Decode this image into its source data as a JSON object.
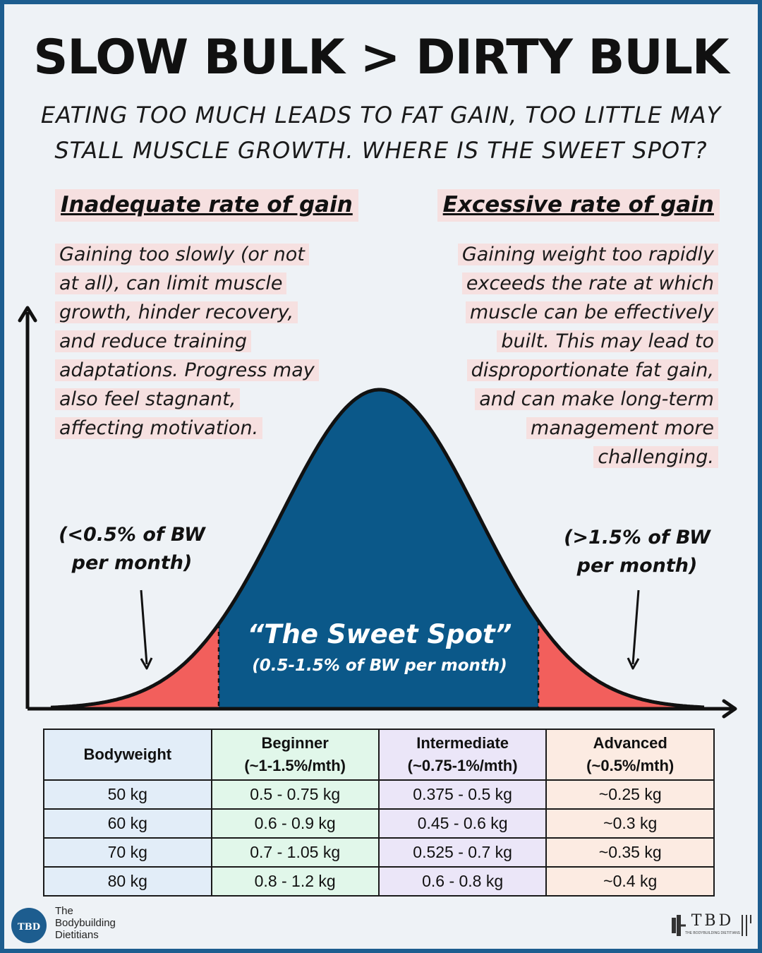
{
  "header": {
    "title": "SLOW BULK > DIRTY BULK",
    "subtitle_line1": "EATING TOO MUCH LEADS TO FAT GAIN, TOO LITTLE MAY",
    "subtitle_line2": "STALL MUSCLE GROWTH. WHERE IS THE SWEET SPOT?"
  },
  "left": {
    "heading": "Inadequate rate of gain",
    "lines": [
      "Gaining too slowly (or not",
      "at all), can limit muscle",
      "growth, hinder recovery,",
      "and reduce training",
      "adaptations. Progress may",
      "also feel stagnant,",
      "affecting motivation."
    ],
    "range_line1": "(<0.5% of BW",
    "range_line2": "per month)"
  },
  "right": {
    "heading": "Excessive rate of gain",
    "lines": [
      "Gaining weight too rapidly",
      "exceeds the rate at which",
      "muscle can be effectively",
      "built. This may lead to",
      "disproportionate fat gain,",
      "and can make long-term",
      "management more",
      "challenging."
    ],
    "range_line1": "(>1.5% of BW",
    "range_line2": "per month)"
  },
  "sweet_spot": {
    "label": "“The Sweet Spot”",
    "range": "(0.5-1.5% of BW per month)"
  },
  "colors": {
    "curve_fill": "#0b5889",
    "tail_fill": "#f25f5c",
    "highlight": "#f6e0e0",
    "border": "#1d5d8f"
  },
  "table": {
    "headers": [
      {
        "line1": "Bodyweight",
        "line2": ""
      },
      {
        "line1": "Beginner",
        "line2": "(~1-1.5%/mth)"
      },
      {
        "line1": "Intermediate",
        "line2": "(~0.75-1%/mth)"
      },
      {
        "line1": "Advanced",
        "line2": "(~0.5%/mth)"
      }
    ],
    "rows": [
      [
        "50 kg",
        "0.5 - 0.75 kg",
        "0.375 - 0.5 kg",
        "~0.25 kg"
      ],
      [
        "60 kg",
        "0.6 - 0.9 kg",
        "0.45 - 0.6 kg",
        "~0.3 kg"
      ],
      [
        "70 kg",
        "0.7 - 1.05 kg",
        "0.525 - 0.7 kg",
        "~0.35 kg"
      ],
      [
        "80 kg",
        "0.8 - 1.2 kg",
        "0.6 - 0.8 kg",
        "~0.4 kg"
      ]
    ]
  },
  "brand": {
    "circle_text": "TBD",
    "name_line1": "The",
    "name_line2": "Bodybuilding",
    "name_line3": "Dietitians",
    "right_mark": "TBD",
    "right_sub": "THE BODYBUILDING DIETITIANS"
  }
}
